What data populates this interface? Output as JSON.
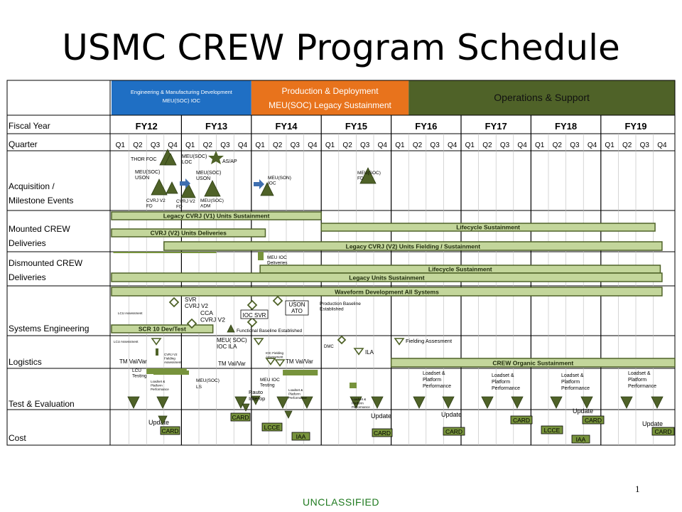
{
  "title": "USMC CREW Program Schedule",
  "page_number": "1",
  "classification": "UNCLASSIFIED",
  "colors": {
    "engineering": "#1f6fc4",
    "production": "#e8731c",
    "operations": "#4f6228",
    "bar": "#c3d69b",
    "bar_dark": "#77933c",
    "milestone": "#4f6228"
  },
  "phases": [
    {
      "label": "Engineering & Manufacturing Development",
      "sub": "MEU(SOC) IOC",
      "start": 0,
      "end": 8,
      "color": "#1f6fc4"
    },
    {
      "label": "Production & Deployment",
      "sub": "MEU(SOC) Legacy Sustainment",
      "start": 8,
      "end": 17,
      "color": "#e8731c"
    },
    {
      "label": "Operations & Support",
      "sub": "",
      "start": 17,
      "end": 32,
      "color": "#4f6228"
    }
  ],
  "fiscal_year_label": "Fiscal Year",
  "quarter_label": "Quarter",
  "fiscal_years": [
    "FY12",
    "FY13",
    "FY14",
    "FY15",
    "FY16",
    "FY17",
    "FY18",
    "FY19"
  ],
  "quarters": [
    "Q1",
    "Q2",
    "Q3",
    "Q4"
  ],
  "rows": [
    {
      "label": [
        "Acquisition /",
        "Milestone Events"
      ]
    },
    {
      "label": [
        "Mounted CREW",
        "Deliveries"
      ]
    },
    {
      "label": [
        "Dismounted CREW",
        "Deliveries"
      ]
    },
    {
      "label": [
        "Systems Engineering"
      ]
    },
    {
      "label": [
        "Logistics"
      ]
    },
    {
      "label": [
        "Test & Evaluation"
      ]
    },
    {
      "label": [
        "Cost"
      ]
    }
  ],
  "bars": [
    {
      "label": "Legacy CVRJ (V1) Units  Sustainment",
      "start": 0,
      "end": 12,
      "row": "mounted",
      "slot": 0
    },
    {
      "label": "Lifecycle Sustainment",
      "start": 12,
      "end": 31.1,
      "row": "mounted",
      "slot": 1
    },
    {
      "label": "CVRJ (V2) Units Deliveries",
      "start": 0,
      "end": 8.8,
      "row": "mounted",
      "slot": 2
    },
    {
      "label": "Legacy CVRJ (V2) Units Fielding / Sustainment",
      "start": 3,
      "end": 31.5,
      "row": "mounted",
      "slot": 3
    },
    {
      "label": "Lifecycle Sustainment",
      "start": 8.5,
      "end": 31.4,
      "row": "dismounted",
      "slot": 1
    },
    {
      "label": "Legacy Units Sustainment",
      "start": 0,
      "end": 31.5,
      "row": "dismounted",
      "slot": 2
    },
    {
      "label": "Waveform Development All Systems",
      "start": 0,
      "end": 31.5,
      "row": "syseng",
      "slot": 0
    },
    {
      "label": "SCR 10 Dev/Test",
      "start": 0,
      "end": 5.8,
      "row": "syseng",
      "slot": 3
    },
    {
      "label": "CREW Organic  Sustainment",
      "start": 16,
      "end": 32,
      "row": "logistics",
      "slot": 1
    }
  ],
  "annotations": {
    "thor_foc": "THOR FOC",
    "meu_soc_loc": "MEU(SOC) LOC",
    "as_ap": "AS/AP",
    "meu_soc_uson": "MEU(SOC) USON",
    "meu_soc_uson2": "MEU(SOC) USON",
    "cvrj_v2_fd": "CVRJ V2 FD",
    "cvrj_v2_fd2": "CVRJ V2 FD",
    "meu_soc_adm": "MEU(SOC) ADM",
    "meu_son_ioc": "MEU(SON) IOC",
    "meu_soc_fd": "MEU(SOC) FD",
    "meu_ioc_deliveries": "MEU IOC Deliveries",
    "svr": "SVR",
    "cvrj_v2": "CVRJ V2",
    "cca": "CCA",
    "cvrj_v2b": "CVRJ V2",
    "ioc_svr": "IOC SVR",
    "uson_ato": "USON ATO",
    "prod_baseline": "Production Baseline Established",
    "func_baseline": "Functional Baseline Established",
    "lcu_assessment": "LCU Assessment",
    "lcu_assessment2": "LCU Assessment",
    "cvrj_v2_fielding": "CVRJ V2 Fielding Assessment",
    "meu_soc_ioc_ila": "MEU( SOC) IOC  ILA",
    "tm_valvar": "TM Val/Var",
    "tm_valvar2": "TM Val/Var",
    "tm_valvar3": "TM Val/Var",
    "ioc_fielding": "IOC Fielding Assessment",
    "ila": "ILA",
    "fielding_assesment": "Fielding Assesment",
    "dmc": "DMC",
    "lcu_testing": "LCU Testing",
    "loadset_small": "Loadset & Platform Performance",
    "meu_soc_ls": "MEU(SOC) LS",
    "rauto_interop": "Rauto Interop",
    "meu_ioc_testing": "MEU IOC Testing",
    "loadset_platform": "Loadset & Platform Performance",
    "update": "Update",
    "card": "CARD",
    "lcce": "LCCE",
    "iaa": "IAA"
  }
}
